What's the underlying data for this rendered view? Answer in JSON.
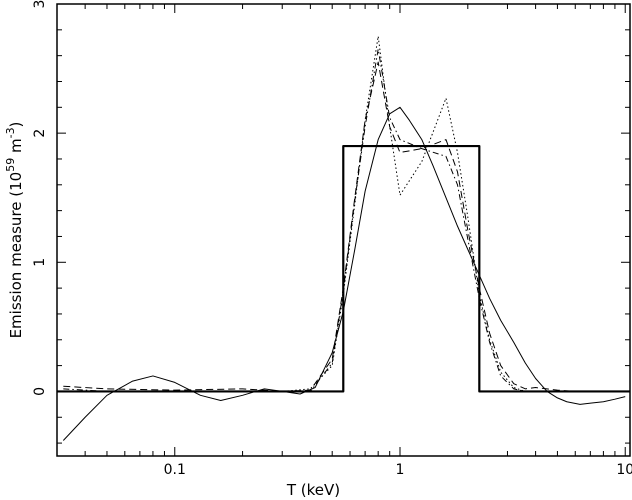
{
  "chart_data": {
    "type": "line",
    "title": "",
    "xlabel": "T (keV)",
    "ylabel": {
      "text": "Emission measure (10",
      "exp1": "59",
      "mid": " m",
      "exp2": "-3",
      "end": ")"
    },
    "x_scale": "log",
    "xlim": [
      0.03,
      10.5
    ],
    "ylim": [
      -0.5,
      3
    ],
    "x_ticks": [
      {
        "value": 0.1,
        "label": "0.1"
      },
      {
        "value": 1,
        "label": "1"
      },
      {
        "value": 10,
        "label": "10"
      }
    ],
    "y_ticks": [
      {
        "value": 0,
        "label": "0"
      },
      {
        "value": 1,
        "label": "1"
      },
      {
        "value": 2,
        "label": "2"
      },
      {
        "value": 3,
        "label": "3"
      }
    ],
    "grid": false,
    "series": [
      {
        "style": "thick-solid",
        "x": [
          0.03,
          0.56,
          0.56,
          2.25,
          2.25,
          10.5
        ],
        "y": [
          0,
          0,
          1.9,
          1.9,
          0,
          0
        ]
      },
      {
        "style": "solid",
        "x": [
          0.032,
          0.04,
          0.05,
          0.065,
          0.08,
          0.1,
          0.13,
          0.16,
          0.2,
          0.25,
          0.3,
          0.36,
          0.42,
          0.5,
          0.56,
          0.63,
          0.7,
          0.8,
          0.9,
          1.0,
          1.1,
          1.25,
          1.4,
          1.6,
          1.8,
          2.0,
          2.25,
          2.5,
          2.8,
          3.2,
          3.6,
          4.0,
          4.5,
          5.0,
          5.5,
          6.3,
          7.1,
          8.0,
          9.0,
          10.0
        ],
        "y": [
          -0.38,
          -0.2,
          -0.03,
          0.08,
          0.12,
          0.07,
          -0.03,
          -0.07,
          -0.03,
          0.02,
          0.0,
          -0.02,
          0.03,
          0.3,
          0.62,
          1.1,
          1.55,
          1.95,
          2.15,
          2.2,
          2.1,
          1.95,
          1.75,
          1.5,
          1.28,
          1.1,
          0.9,
          0.72,
          0.55,
          0.38,
          0.22,
          0.1,
          0.0,
          -0.05,
          -0.08,
          -0.1,
          -0.09,
          -0.08,
          -0.06,
          -0.04
        ]
      },
      {
        "style": "dotted",
        "x": [
          0.032,
          0.05,
          0.1,
          0.2,
          0.3,
          0.4,
          0.5,
          0.56,
          0.63,
          0.7,
          0.8,
          0.9,
          1.0,
          1.25,
          1.6,
          1.8,
          2.0,
          2.25,
          2.5,
          2.8,
          3.2,
          3.6,
          4.0,
          5.0
        ],
        "y": [
          0.0,
          0.0,
          0.0,
          0.0,
          0.0,
          0.02,
          0.2,
          0.75,
          1.45,
          2.1,
          2.75,
          2.05,
          1.52,
          1.78,
          2.27,
          1.85,
          1.35,
          0.75,
          0.4,
          0.15,
          0.03,
          0.0,
          0.0,
          0.0
        ]
      },
      {
        "style": "dashed",
        "x": [
          0.032,
          0.05,
          0.1,
          0.2,
          0.3,
          0.4,
          0.5,
          0.56,
          0.63,
          0.7,
          0.8,
          0.9,
          1.0,
          1.25,
          1.6,
          1.8,
          2.0,
          2.25,
          2.5,
          2.8,
          3.2,
          3.6,
          4.0,
          5.0,
          6.0
        ],
        "y": [
          0.04,
          0.02,
          0.01,
          0.02,
          0.0,
          0.01,
          0.25,
          0.8,
          1.5,
          2.1,
          2.55,
          2.05,
          1.85,
          1.88,
          1.95,
          1.7,
          1.25,
          0.8,
          0.45,
          0.2,
          0.06,
          0.02,
          0.03,
          0.01,
          0.0
        ]
      },
      {
        "style": "dash-dot",
        "x": [
          0.032,
          0.05,
          0.1,
          0.2,
          0.3,
          0.4,
          0.5,
          0.56,
          0.63,
          0.7,
          0.8,
          0.9,
          1.0,
          1.25,
          1.6,
          1.8,
          2.0,
          2.25,
          2.5,
          2.8,
          3.2,
          3.6,
          4.0,
          5.0
        ],
        "y": [
          0.02,
          0.0,
          0.0,
          0.0,
          0.0,
          0.0,
          0.22,
          0.78,
          1.48,
          2.05,
          2.65,
          2.12,
          1.95,
          1.88,
          1.82,
          1.6,
          1.18,
          0.72,
          0.38,
          0.12,
          0.02,
          0.0,
          0.0,
          0.0
        ]
      }
    ]
  }
}
